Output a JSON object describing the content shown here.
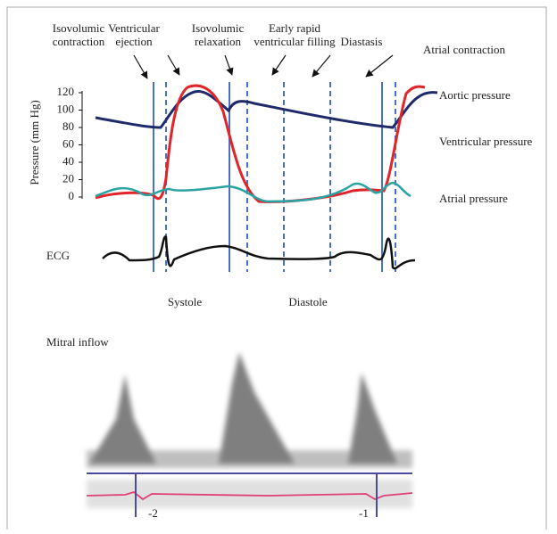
{
  "phases": [
    {
      "lines": [
        "Isovolumic",
        "contraction"
      ]
    },
    {
      "lines": [
        "Ventricular",
        "ejection"
      ]
    },
    {
      "lines": [
        "Isovolumic",
        "relaxation"
      ]
    },
    {
      "lines": [
        "Early rapid",
        "ventricular filling"
      ]
    },
    {
      "lines": [
        "Diastasis"
      ]
    },
    {
      "lines": [
        "Atrial contraction"
      ]
    }
  ],
  "pressure_axis": {
    "label": "Pressure (mm Hg)",
    "ylim": [
      0,
      120
    ],
    "yticks": [
      0,
      20,
      40,
      60,
      80,
      100,
      120
    ]
  },
  "curve_labels": [
    "Aortic pressure",
    "Ventricular pressure",
    "Atrial pressure"
  ],
  "ecg_label": "ECG",
  "periods": [
    "Systole",
    "Diastole"
  ],
  "mitral_label": "Mitral inflow",
  "beat_labels": [
    "-2",
    "-1"
  ]
}
